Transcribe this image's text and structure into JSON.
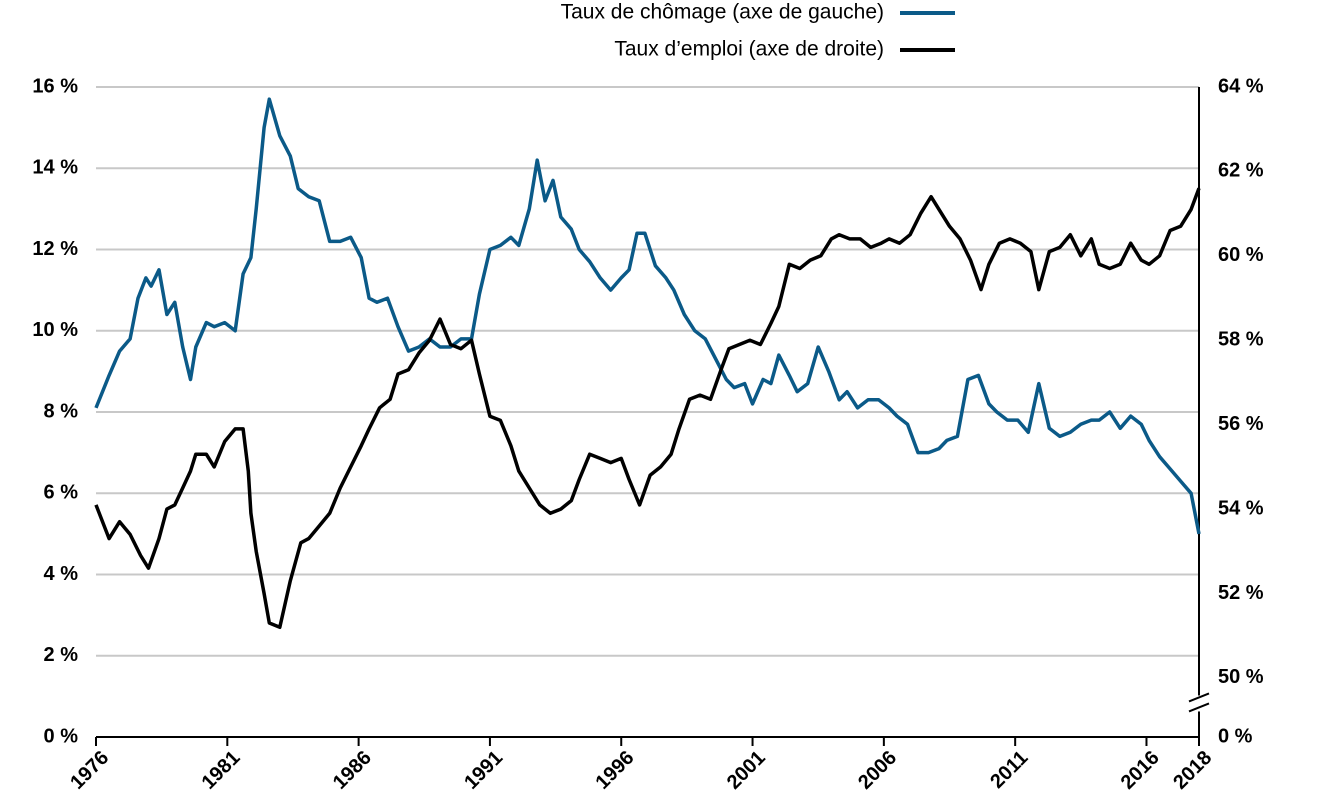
{
  "chart_data": {
    "type": "line",
    "xlim": [
      1976,
      2018
    ],
    "xticks": [
      1976,
      1981,
      1986,
      1991,
      1996,
      2001,
      2006,
      2011,
      2016,
      2018
    ],
    "ylim": [
      0,
      16
    ],
    "yticks": [
      {
        "value": 0,
        "label": "0 %"
      },
      {
        "value": 2,
        "label": "2 %"
      },
      {
        "value": 4,
        "label": "4 %"
      },
      {
        "value": 6,
        "label": "6 %"
      },
      {
        "value": 8,
        "label": "8 %"
      },
      {
        "value": 10,
        "label": "10 %"
      },
      {
        "value": 12,
        "label": "12 %"
      },
      {
        "value": 14,
        "label": "14 %"
      },
      {
        "value": 16,
        "label": "16 %"
      }
    ],
    "y2lim": [
      48.6,
      64
    ],
    "y2ticks": [
      {
        "value": 0,
        "label": "0 %"
      },
      {
        "value": 50,
        "label": "50 %"
      },
      {
        "value": 52,
        "label": "52 %"
      },
      {
        "value": 54,
        "label": "54 %"
      },
      {
        "value": 56,
        "label": "56 %"
      },
      {
        "value": 58,
        "label": "58 %"
      },
      {
        "value": 60,
        "label": "60 %"
      },
      {
        "value": 62,
        "label": "62 %"
      },
      {
        "value": 64,
        "label": "64 %"
      }
    ],
    "y2_axis_break": true,
    "grid": true,
    "legend": "top",
    "series": [
      {
        "name": "Taux de chômage (axe de gauche)",
        "color": "#0b5a88",
        "x": [
          1976.0,
          1976.5,
          1976.9,
          1977.3,
          1977.6,
          1977.9,
          1978.1,
          1978.4,
          1978.7,
          1979.0,
          1979.3,
          1979.6,
          1979.8,
          1980.2,
          1980.5,
          1980.9,
          1981.3,
          1981.6,
          1981.9,
          1982.1,
          1982.4,
          1982.6,
          1983.0,
          1983.4,
          1983.7,
          1984.1,
          1984.5,
          1984.9,
          1985.3,
          1985.7,
          1986.1,
          1986.4,
          1986.7,
          1987.1,
          1987.5,
          1987.9,
          1988.3,
          1988.7,
          1989.1,
          1989.5,
          1989.9,
          1990.3,
          1990.6,
          1991.0,
          1991.4,
          1991.8,
          1992.1,
          1992.5,
          1992.8,
          1993.1,
          1993.4,
          1993.7,
          1994.1,
          1994.4,
          1994.8,
          1995.2,
          1995.6,
          1996.0,
          1996.3,
          1996.6,
          1996.9,
          1997.3,
          1997.7,
          1998.0,
          1998.4,
          1998.8,
          1999.2,
          1999.6,
          2000.0,
          2000.3,
          2000.7,
          2001.0,
          2001.4,
          2001.7,
          2002.0,
          2002.4,
          2002.7,
          2003.1,
          2003.5,
          2003.9,
          2004.3,
          2004.6,
          2005.0,
          2005.4,
          2005.8,
          2006.2,
          2006.5,
          2006.9,
          2007.3,
          2007.7,
          2008.1,
          2008.4,
          2008.8,
          2009.2,
          2009.6,
          2010.0,
          2010.3,
          2010.7,
          2011.1,
          2011.5,
          2011.9,
          2012.3,
          2012.7,
          2013.1,
          2013.5,
          2013.9,
          2014.2,
          2014.6,
          2015.0,
          2015.4,
          2015.8,
          2016.1,
          2016.5,
          2016.9,
          2017.3,
          2017.7,
          2018.0
        ],
        "values": [
          8.1,
          8.9,
          9.5,
          9.8,
          10.8,
          11.3,
          11.1,
          11.5,
          10.4,
          10.7,
          9.6,
          8.8,
          9.6,
          10.2,
          10.1,
          10.2,
          10.0,
          11.4,
          11.8,
          13.0,
          15.0,
          15.7,
          14.8,
          14.3,
          13.5,
          13.3,
          13.2,
          12.2,
          12.2,
          12.3,
          11.8,
          10.8,
          10.7,
          10.8,
          10.1,
          9.5,
          9.6,
          9.8,
          9.6,
          9.6,
          9.8,
          9.8,
          10.9,
          12.0,
          12.1,
          12.3,
          12.1,
          13.0,
          14.2,
          13.2,
          13.7,
          12.8,
          12.5,
          12.0,
          11.7,
          11.3,
          11.0,
          11.3,
          11.5,
          12.4,
          12.4,
          11.6,
          11.3,
          11.0,
          10.4,
          10.0,
          9.8,
          9.3,
          8.8,
          8.6,
          8.7,
          8.2,
          8.8,
          8.7,
          9.4,
          8.9,
          8.5,
          8.7,
          9.6,
          9.0,
          8.3,
          8.5,
          8.1,
          8.3,
          8.3,
          8.1,
          7.9,
          7.7,
          7.0,
          7.0,
          7.1,
          7.3,
          7.4,
          8.8,
          8.9,
          8.2,
          8.0,
          7.8,
          7.8,
          7.5,
          8.7,
          7.6,
          7.4,
          7.5,
          7.7,
          7.8,
          7.8,
          8.0,
          7.6,
          7.9,
          7.7,
          7.3,
          6.9,
          6.6,
          6.3,
          6.0,
          5.0
        ]
      },
      {
        "name": "Taux d’emploi (axe de droite)",
        "color": "#000000",
        "axis": "y2",
        "x": [
          1976.0,
          1976.5,
          1976.9,
          1977.3,
          1977.7,
          1978.0,
          1978.4,
          1978.7,
          1979.0,
          1979.3,
          1979.6,
          1979.8,
          1980.2,
          1980.5,
          1980.9,
          1981.3,
          1981.6,
          1981.8,
          1981.9,
          1982.1,
          1982.4,
          1982.6,
          1983.0,
          1983.4,
          1983.8,
          1984.1,
          1984.5,
          1984.9,
          1985.3,
          1985.7,
          1986.1,
          1986.4,
          1986.8,
          1987.2,
          1987.5,
          1987.9,
          1988.3,
          1988.7,
          1989.1,
          1989.5,
          1989.9,
          1990.3,
          1990.6,
          1991.0,
          1991.4,
          1991.8,
          1992.1,
          1992.5,
          1992.9,
          1993.3,
          1993.7,
          1994.1,
          1994.4,
          1994.8,
          1995.2,
          1995.6,
          1996.0,
          1996.3,
          1996.7,
          1997.1,
          1997.5,
          1997.9,
          1998.2,
          1998.6,
          1999.0,
          1999.4,
          1999.8,
          2000.1,
          2000.5,
          2000.9,
          2001.3,
          2001.7,
          2002.0,
          2002.4,
          2002.8,
          2003.2,
          2003.6,
          2004.0,
          2004.3,
          2004.7,
          2005.1,
          2005.5,
          2005.9,
          2006.2,
          2006.6,
          2007.0,
          2007.4,
          2007.8,
          2008.1,
          2008.5,
          2008.9,
          2009.3,
          2009.7,
          2010.0,
          2010.4,
          2010.8,
          2011.2,
          2011.6,
          2011.9,
          2012.3,
          2012.7,
          2013.1,
          2013.5,
          2013.9,
          2014.2,
          2014.6,
          2015.0,
          2015.4,
          2015.8,
          2016.1,
          2016.5,
          2016.9,
          2017.3,
          2017.7,
          2018.0
        ],
        "values": [
          54.1,
          53.3,
          53.7,
          53.4,
          52.9,
          52.6,
          53.3,
          54.0,
          54.1,
          54.5,
          54.9,
          55.3,
          55.3,
          55.0,
          55.6,
          55.9,
          55.9,
          54.9,
          53.9,
          53.0,
          52.0,
          51.3,
          51.2,
          52.3,
          53.2,
          53.3,
          53.6,
          53.9,
          54.5,
          55.0,
          55.5,
          55.9,
          56.4,
          56.6,
          57.2,
          57.3,
          57.7,
          58.0,
          58.5,
          57.9,
          57.8,
          58.0,
          57.2,
          56.2,
          56.1,
          55.5,
          54.9,
          54.5,
          54.1,
          53.9,
          54.0,
          54.2,
          54.7,
          55.3,
          55.2,
          55.1,
          55.2,
          54.7,
          54.1,
          54.8,
          55.0,
          55.3,
          55.9,
          56.6,
          56.7,
          56.6,
          57.3,
          57.8,
          57.9,
          58.0,
          57.9,
          58.4,
          58.8,
          59.8,
          59.7,
          59.9,
          60.0,
          60.4,
          60.5,
          60.4,
          60.4,
          60.2,
          60.3,
          60.4,
          60.3,
          60.5,
          61.0,
          61.4,
          61.1,
          60.7,
          60.4,
          59.9,
          59.2,
          59.8,
          60.3,
          60.4,
          60.3,
          60.1,
          59.2,
          60.1,
          60.2,
          60.5,
          60.0,
          60.4,
          59.8,
          59.7,
          59.8,
          60.3,
          59.9,
          59.8,
          60.0,
          60.6,
          60.7,
          61.1,
          61.6
        ]
      }
    ]
  }
}
